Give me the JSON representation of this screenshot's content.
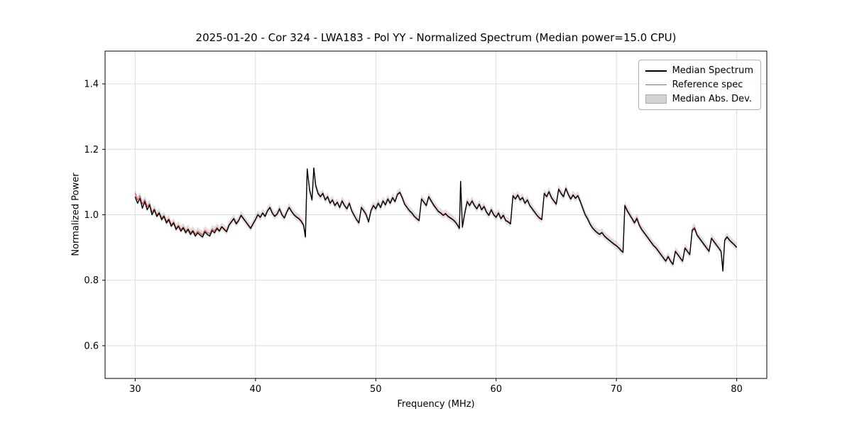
{
  "figure": {
    "background": "#ffffff"
  },
  "chart_data": {
    "type": "line",
    "title": "2025-01-20 - Cor 324 - LWA183 - Pol YY - Normalized Spectrum (Median power=15.0 CPU)",
    "xlabel": "Frequency (MHz)",
    "ylabel": "Normalized Power",
    "xlim": [
      27.5,
      82.5
    ],
    "ylim": [
      0.5,
      1.5
    ],
    "xticks": [
      30,
      40,
      50,
      60,
      70,
      80
    ],
    "yticks": [
      0.6,
      0.8,
      1.0,
      1.2,
      1.4
    ],
    "grid": true,
    "grid_color": "#dcdcdc",
    "legend_position": "upper right",
    "x": [
      30.0,
      30.2,
      30.4,
      30.6,
      30.8,
      31.0,
      31.2,
      31.4,
      31.6,
      31.8,
      32.0,
      32.2,
      32.4,
      32.6,
      32.8,
      33.0,
      33.2,
      33.4,
      33.6,
      33.8,
      34.0,
      34.2,
      34.4,
      34.6,
      34.8,
      35.0,
      35.2,
      35.4,
      35.6,
      35.8,
      36.0,
      36.2,
      36.4,
      36.6,
      36.8,
      37.0,
      37.2,
      37.4,
      37.6,
      37.8,
      38.0,
      38.2,
      38.4,
      38.6,
      38.8,
      39.0,
      39.2,
      39.4,
      39.6,
      39.8,
      40.0,
      40.2,
      40.4,
      40.6,
      40.8,
      41.0,
      41.2,
      41.4,
      41.6,
      41.8,
      42.0,
      42.2,
      42.4,
      42.6,
      42.8,
      43.0,
      43.2,
      43.4,
      43.6,
      43.8,
      44.0,
      44.15,
      44.3,
      44.5,
      44.7,
      44.85,
      45.0,
      45.2,
      45.4,
      45.6,
      45.8,
      46.0,
      46.2,
      46.4,
      46.6,
      46.8,
      47.0,
      47.2,
      47.4,
      47.6,
      47.8,
      48.0,
      48.2,
      48.4,
      48.6,
      48.8,
      49.0,
      49.2,
      49.4,
      49.6,
      49.8,
      50.0,
      50.2,
      50.4,
      50.6,
      50.8,
      51.0,
      51.2,
      51.4,
      51.6,
      51.8,
      52.0,
      52.2,
      52.4,
      52.6,
      52.8,
      53.0,
      53.2,
      53.4,
      53.6,
      53.8,
      54.0,
      54.2,
      54.4,
      54.6,
      54.8,
      55.0,
      55.2,
      55.4,
      55.6,
      55.8,
      56.0,
      56.2,
      56.4,
      56.6,
      56.8,
      56.95,
      57.05,
      57.2,
      57.4,
      57.6,
      57.8,
      58.0,
      58.2,
      58.4,
      58.6,
      58.8,
      59.0,
      59.2,
      59.4,
      59.6,
      59.8,
      60.0,
      60.2,
      60.4,
      60.6,
      60.8,
      61.0,
      61.2,
      61.4,
      61.6,
      61.8,
      62.0,
      62.2,
      62.4,
      62.6,
      62.8,
      63.0,
      63.2,
      63.4,
      63.6,
      63.8,
      64.0,
      64.2,
      64.4,
      64.6,
      64.8,
      65.0,
      65.2,
      65.4,
      65.6,
      65.8,
      66.0,
      66.2,
      66.4,
      66.6,
      66.8,
      67.0,
      67.2,
      67.4,
      67.6,
      67.8,
      68.0,
      68.2,
      68.4,
      68.6,
      68.8,
      69.0,
      69.2,
      69.4,
      69.6,
      69.8,
      70.0,
      70.2,
      70.4,
      70.55,
      70.7,
      70.9,
      71.1,
      71.3,
      71.5,
      71.7,
      71.9,
      72.1,
      72.3,
      72.5,
      72.7,
      72.9,
      73.1,
      73.3,
      73.5,
      73.7,
      73.9,
      74.1,
      74.3,
      74.5,
      74.7,
      74.9,
      75.1,
      75.3,
      75.5,
      75.7,
      75.9,
      76.1,
      76.3,
      76.5,
      76.7,
      76.9,
      77.1,
      77.3,
      77.5,
      77.7,
      77.9,
      78.1,
      78.3,
      78.5,
      78.7,
      78.85,
      79.0,
      79.2,
      79.4,
      79.6,
      79.8,
      80.0
    ],
    "series": [
      {
        "name": "Median Spectrum",
        "color": "#000000",
        "linewidth": 1.4,
        "values": [
          1.055,
          1.035,
          1.05,
          1.02,
          1.04,
          1.015,
          1.03,
          1.0,
          1.015,
          0.995,
          1.005,
          0.985,
          0.995,
          0.975,
          0.985,
          0.965,
          0.975,
          0.955,
          0.965,
          0.95,
          0.96,
          0.945,
          0.955,
          0.94,
          0.95,
          0.935,
          0.945,
          0.938,
          0.932,
          0.948,
          0.94,
          0.935,
          0.952,
          0.945,
          0.958,
          0.95,
          0.963,
          0.955,
          0.948,
          0.968,
          0.978,
          0.988,
          0.972,
          0.982,
          0.998,
          0.988,
          0.978,
          0.968,
          0.958,
          0.972,
          0.985,
          1.0,
          0.992,
          1.005,
          0.995,
          1.012,
          1.022,
          1.005,
          0.995,
          1.002,
          1.018,
          1.0,
          0.99,
          1.008,
          1.022,
          1.01,
          1.0,
          0.993,
          0.988,
          0.98,
          0.968,
          0.932,
          1.14,
          1.075,
          1.045,
          1.143,
          1.09,
          1.065,
          1.055,
          1.065,
          1.045,
          1.055,
          1.035,
          1.045,
          1.028,
          1.038,
          1.022,
          1.042,
          1.028,
          1.018,
          1.035,
          1.012,
          0.998,
          0.985,
          0.975,
          1.022,
          1.012,
          1.0,
          0.978,
          1.012,
          1.028,
          1.018,
          1.035,
          1.022,
          1.042,
          1.03,
          1.048,
          1.035,
          1.052,
          1.04,
          1.062,
          1.068,
          1.052,
          1.032,
          1.022,
          1.012,
          1.005,
          0.995,
          0.988,
          0.982,
          1.048,
          1.038,
          1.028,
          1.055,
          1.042,
          1.03,
          1.02,
          1.01,
          1.005,
          0.998,
          1.003,
          0.995,
          0.99,
          0.985,
          0.978,
          0.968,
          0.958,
          1.102,
          0.962,
          1.005,
          1.04,
          1.028,
          1.042,
          1.028,
          1.018,
          1.032,
          1.015,
          1.025,
          1.008,
          0.998,
          1.015,
          1.0,
          0.992,
          1.005,
          0.988,
          0.998,
          0.982,
          0.978,
          0.972,
          1.058,
          1.048,
          1.06,
          1.045,
          1.052,
          1.035,
          1.045,
          1.028,
          1.018,
          1.008,
          0.998,
          0.99,
          0.985,
          1.065,
          1.055,
          1.07,
          1.052,
          1.042,
          1.032,
          1.078,
          1.065,
          1.055,
          1.08,
          1.062,
          1.048,
          1.06,
          1.05,
          1.058,
          1.04,
          1.02,
          1.0,
          0.988,
          0.972,
          0.96,
          0.952,
          0.945,
          0.94,
          0.945,
          0.935,
          0.928,
          0.922,
          0.916,
          0.91,
          0.905,
          0.898,
          0.89,
          0.885,
          1.028,
          1.012,
          1.0,
          0.988,
          0.975,
          0.988,
          0.968,
          0.955,
          0.945,
          0.935,
          0.925,
          0.915,
          0.905,
          0.898,
          0.888,
          0.878,
          0.868,
          0.858,
          0.872,
          0.858,
          0.848,
          0.888,
          0.878,
          0.868,
          0.858,
          0.898,
          0.888,
          0.878,
          0.952,
          0.958,
          0.938,
          0.928,
          0.918,
          0.908,
          0.898,
          0.888,
          0.928,
          0.918,
          0.908,
          0.898,
          0.888,
          0.828,
          0.922,
          0.932,
          0.922,
          0.915,
          0.908,
          0.9
        ]
      },
      {
        "name": "Reference spec",
        "color": "#e04b4b",
        "linewidth": 1.1,
        "values": [
          1.067,
          1.045,
          1.058,
          1.032,
          1.046,
          1.025,
          1.034,
          1.008,
          1.018,
          0.999,
          1.008,
          0.99,
          0.998,
          0.98,
          0.988,
          0.97,
          0.978,
          0.96,
          0.968,
          0.955,
          0.963,
          0.95,
          0.958,
          0.946,
          0.953,
          0.941,
          0.95,
          0.944,
          0.939,
          0.953,
          0.946,
          0.942,
          0.957,
          0.951,
          0.962,
          0.953,
          0.965,
          0.958,
          0.951,
          0.97,
          0.98,
          0.99,
          0.975,
          0.984,
          1.0,
          0.99,
          0.98,
          0.97,
          0.961,
          0.974,
          0.987,
          1.002,
          0.994,
          1.007,
          0.997,
          1.014,
          1.024,
          1.007,
          0.997,
          1.004,
          1.02,
          1.002,
          0.992,
          1.01,
          1.024,
          1.012,
          1.002,
          0.995,
          0.99,
          0.982,
          0.97,
          0.934,
          1.138,
          1.077,
          1.047,
          1.14,
          1.092,
          1.067,
          1.057,
          1.067,
          1.047,
          1.057,
          1.037,
          1.047,
          1.03,
          1.04,
          1.024,
          1.044,
          1.03,
          1.02,
          1.037,
          1.014,
          1.0,
          0.987,
          0.977,
          1.024,
          1.014,
          1.002,
          0.98,
          1.014,
          1.03,
          1.02,
          1.037,
          1.024,
          1.044,
          1.032,
          1.05,
          1.037,
          1.054,
          1.042,
          1.064,
          1.07,
          1.054,
          1.034,
          1.024,
          1.014,
          1.007,
          0.997,
          0.99,
          0.984,
          1.05,
          1.04,
          1.03,
          1.057,
          1.044,
          1.032,
          1.022,
          1.012,
          1.007,
          1.0,
          1.005,
          0.997,
          0.992,
          0.987,
          0.98,
          0.97,
          0.96,
          1.098,
          0.964,
          1.007,
          1.042,
          1.03,
          1.044,
          1.03,
          1.02,
          1.034,
          1.017,
          1.027,
          1.01,
          1.0,
          1.017,
          1.002,
          0.994,
          1.007,
          0.99,
          1.0,
          0.984,
          0.98,
          0.974,
          1.06,
          1.05,
          1.062,
          1.047,
          1.054,
          1.037,
          1.047,
          1.03,
          1.02,
          1.01,
          1.0,
          0.992,
          0.987,
          1.067,
          1.057,
          1.072,
          1.054,
          1.044,
          1.034,
          1.08,
          1.067,
          1.057,
          1.082,
          1.064,
          1.05,
          1.062,
          1.052,
          1.06,
          1.042,
          1.022,
          1.002,
          0.99,
          0.974,
          0.962,
          0.954,
          0.947,
          0.942,
          0.947,
          0.937,
          0.93,
          0.924,
          0.918,
          0.912,
          0.907,
          0.9,
          0.892,
          0.887,
          1.03,
          1.014,
          1.002,
          0.99,
          0.977,
          0.992,
          0.97,
          0.957,
          0.947,
          0.937,
          0.927,
          0.917,
          0.907,
          0.9,
          0.89,
          0.88,
          0.87,
          0.86,
          0.874,
          0.86,
          0.85,
          0.89,
          0.88,
          0.87,
          0.86,
          0.9,
          0.89,
          0.88,
          0.956,
          0.962,
          0.94,
          0.93,
          0.92,
          0.91,
          0.9,
          0.89,
          0.93,
          0.92,
          0.91,
          0.9,
          0.89,
          0.836,
          0.924,
          0.934,
          0.924,
          0.917,
          0.91,
          0.902
        ]
      }
    ],
    "band": {
      "label": "Median Abs. Dev.",
      "around_series": "Reference spec",
      "halfwidth": 0.012,
      "color": "#b8b8b8",
      "opacity": 0.45
    }
  }
}
